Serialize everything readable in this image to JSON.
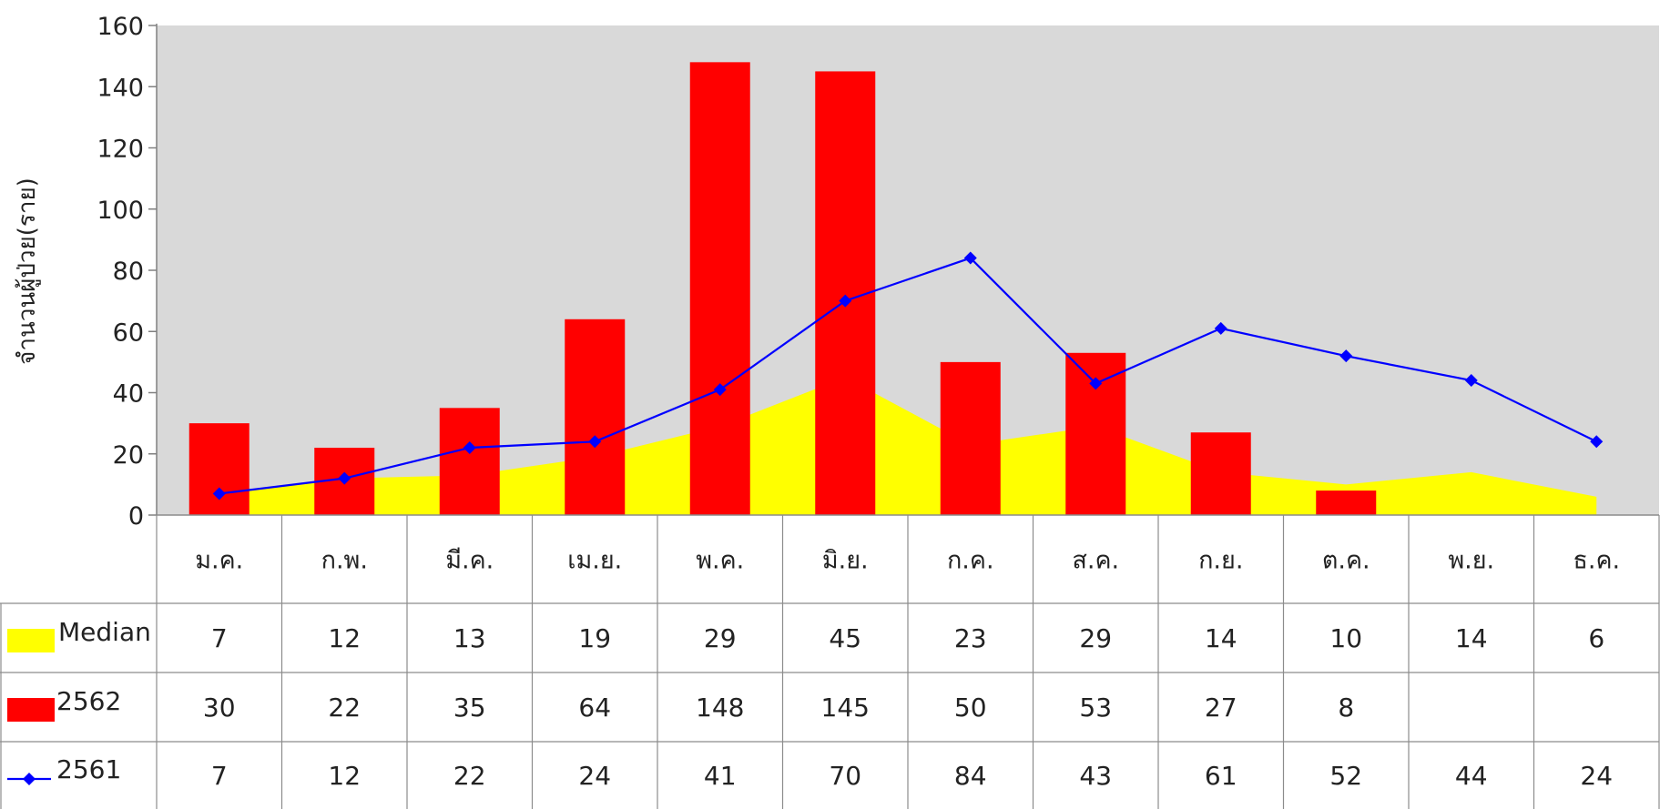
{
  "chart_data": {
    "type": "bar",
    "ylabel": "จำนวนผู้ป่วย(ราย)",
    "ylim": [
      0,
      160
    ],
    "yticks": [
      0,
      20,
      40,
      60,
      80,
      100,
      120,
      140,
      160
    ],
    "categories": [
      "ม.ค.",
      "ก.พ.",
      "มี.ค.",
      "เม.ย.",
      "พ.ค.",
      "มิ.ย.",
      "ก.ค.",
      "ส.ค.",
      "ก.ย.",
      "ต.ค.",
      "พ.ย.",
      "ธ.ค."
    ],
    "grid": false,
    "legend": "data-table",
    "series": [
      {
        "name": "Median",
        "kind": "area",
        "color": "#FFFF00",
        "values": [
          7,
          12,
          13,
          19,
          29,
          45,
          23,
          29,
          14,
          10,
          14,
          6
        ]
      },
      {
        "name": "2562",
        "kind": "bar",
        "color": "#FF0000",
        "values": [
          30,
          22,
          35,
          64,
          148,
          145,
          50,
          53,
          27,
          8,
          null,
          null
        ]
      },
      {
        "name": "2561",
        "kind": "line",
        "color": "#0000FF",
        "marker": "diamond",
        "values": [
          7,
          12,
          22,
          24,
          41,
          70,
          84,
          43,
          61,
          52,
          44,
          24
        ]
      }
    ],
    "plot_background": "#D9D9D9"
  }
}
